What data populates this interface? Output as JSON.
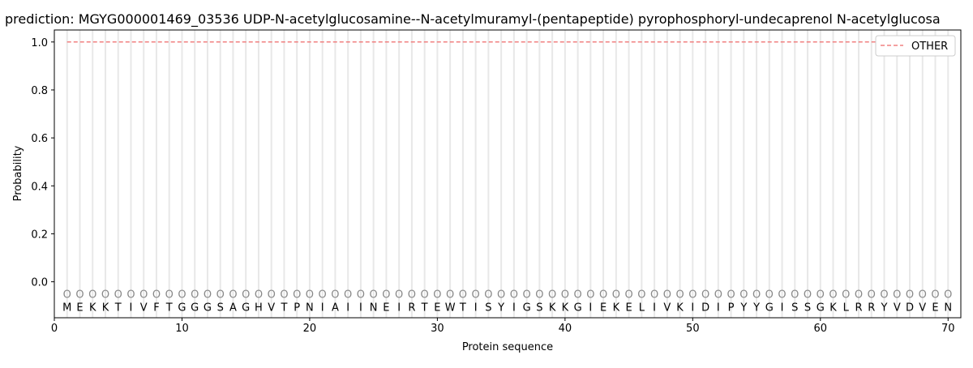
{
  "chart_data": {
    "type": "line",
    "title": "prediction: MGYG000001469_03536 UDP-N-acetylglucosamine--N-acetylmuramyl-(pentapeptide) pyrophosphoryl-undecaprenol N-acetylglucosa",
    "xlabel": "Protein sequence",
    "ylabel": "Probability",
    "xlim": [
      0,
      71
    ],
    "ylim": [
      -0.15,
      1.05
    ],
    "xticks": [
      0,
      10,
      20,
      30,
      40,
      50,
      60,
      70
    ],
    "yticks": [
      0.0,
      0.2,
      0.4,
      0.6,
      0.8,
      1.0
    ],
    "xtick_labels": [
      "0",
      "10",
      "20",
      "30",
      "40",
      "50",
      "60",
      "70"
    ],
    "ytick_labels": [
      "0.0",
      "0.2",
      "0.4",
      "0.6",
      "0.8",
      "1.0"
    ],
    "legend_position": "top-right",
    "sequence": [
      "M",
      "E",
      "K",
      "K",
      "T",
      "I",
      "V",
      "F",
      "T",
      "G",
      "G",
      "G",
      "S",
      "A",
      "G",
      "H",
      "V",
      "T",
      "P",
      "N",
      "I",
      "A",
      "I",
      "I",
      "N",
      "E",
      "I",
      "R",
      "T",
      "E",
      "W",
      "T",
      "I",
      "S",
      "Y",
      "I",
      "G",
      "S",
      "K",
      "K",
      "G",
      "I",
      "E",
      "K",
      "E",
      "L",
      "I",
      "V",
      "K",
      "I",
      "D",
      "I",
      "P",
      "Y",
      "Y",
      "G",
      "I",
      "S",
      "S",
      "G",
      "K",
      "L",
      "R",
      "R",
      "Y",
      "V",
      "D",
      "V",
      "E",
      "N"
    ],
    "marker_symbol": "O",
    "marker_y": -0.05,
    "series": [
      {
        "name": "OTHER",
        "color": "#f08080",
        "style": "dashed",
        "x_range": [
          1,
          70
        ],
        "value": 1.0
      }
    ]
  }
}
